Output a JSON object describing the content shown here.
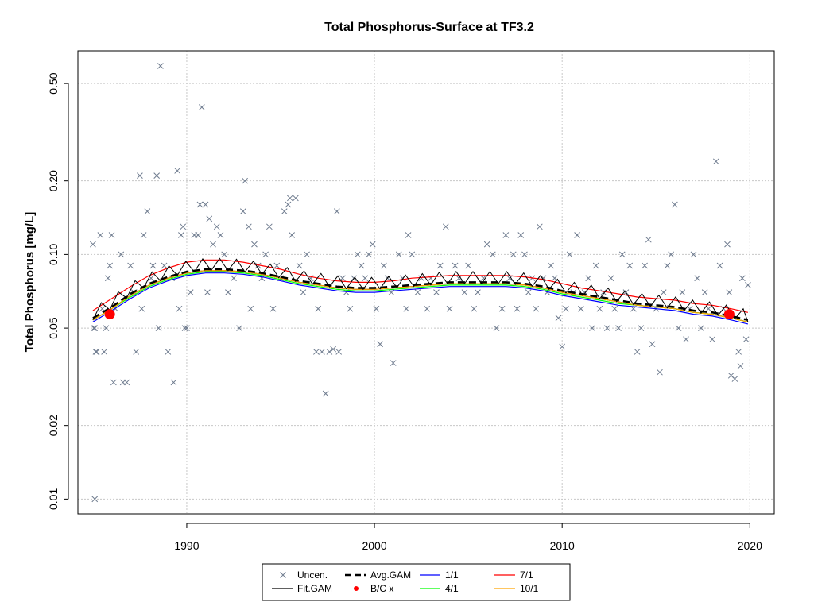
{
  "chart_data": {
    "type": "scatter",
    "title": "Total Phosphorus-Surface at TF3.2",
    "xlabel": "",
    "ylabel": "Total Phosphorus [mg/L]",
    "y_scale": "log",
    "xlim": [
      1984.2,
      2021.3
    ],
    "ylim": [
      0.0087,
      0.68
    ],
    "x_ticks": [
      1990,
      2000,
      2010,
      2020
    ],
    "y_ticks": [
      0.01,
      0.02,
      0.05,
      0.1,
      0.2,
      0.5
    ],
    "y_tick_labels": [
      "0.01",
      "0.02",
      "0.05",
      "0.10",
      "0.20",
      "0.50"
    ],
    "grid": true,
    "legend": {
      "position": "bottom",
      "entries": [
        {
          "label": "Uncen.",
          "style": "x-marker",
          "color": "#6f7c8f"
        },
        {
          "label": "Avg.GAM",
          "style": "dashed",
          "color": "#000000"
        },
        {
          "label": "1/1",
          "style": "line",
          "color": "#0000ff"
        },
        {
          "label": "7/1",
          "style": "line",
          "color": "#ff0000"
        },
        {
          "label": "Fit.GAM",
          "style": "line",
          "color": "#000000"
        },
        {
          "label": "B/C x",
          "style": "dot",
          "color": "#ff0000"
        },
        {
          "label": "4/1",
          "style": "line",
          "color": "#00ff00"
        },
        {
          "label": "10/1",
          "style": "line",
          "color": "#ffa500"
        }
      ]
    },
    "points_uncensored": [
      [
        1985.0,
        0.11
      ],
      [
        1985.05,
        0.05
      ],
      [
        1985.1,
        0.05
      ],
      [
        1985.15,
        0.04
      ],
      [
        1985.2,
        0.04
      ],
      [
        1985.1,
        0.01
      ],
      [
        1985.4,
        0.12
      ],
      [
        1985.5,
        0.06
      ],
      [
        1985.6,
        0.04
      ],
      [
        1985.7,
        0.05
      ],
      [
        1985.8,
        0.08
      ],
      [
        1985.9,
        0.09
      ],
      [
        1986.0,
        0.12
      ],
      [
        1986.1,
        0.03
      ],
      [
        1986.2,
        0.06
      ],
      [
        1986.5,
        0.1
      ],
      [
        1986.6,
        0.03
      ],
      [
        1986.8,
        0.03
      ],
      [
        1987.0,
        0.09
      ],
      [
        1987.2,
        0.07
      ],
      [
        1987.3,
        0.04
      ],
      [
        1987.5,
        0.21
      ],
      [
        1987.6,
        0.06
      ],
      [
        1987.7,
        0.12
      ],
      [
        1987.9,
        0.15
      ],
      [
        1988.1,
        0.08
      ],
      [
        1988.2,
        0.09
      ],
      [
        1988.4,
        0.21
      ],
      [
        1988.5,
        0.05
      ],
      [
        1988.6,
        0.59
      ],
      [
        1988.8,
        0.09
      ],
      [
        1989.0,
        0.04
      ],
      [
        1989.2,
        0.08
      ],
      [
        1989.3,
        0.03
      ],
      [
        1989.5,
        0.22
      ],
      [
        1989.6,
        0.06
      ],
      [
        1989.7,
        0.12
      ],
      [
        1989.8,
        0.13
      ],
      [
        1989.9,
        0.05
      ],
      [
        1990.0,
        0.05
      ],
      [
        1990.2,
        0.07
      ],
      [
        1990.4,
        0.12
      ],
      [
        1990.6,
        0.12
      ],
      [
        1990.7,
        0.16
      ],
      [
        1990.8,
        0.4
      ],
      [
        1991.0,
        0.16
      ],
      [
        1991.1,
        0.07
      ],
      [
        1991.2,
        0.14
      ],
      [
        1991.4,
        0.11
      ],
      [
        1991.6,
        0.13
      ],
      [
        1991.8,
        0.12
      ],
      [
        1992.0,
        0.1
      ],
      [
        1992.2,
        0.07
      ],
      [
        1992.5,
        0.08
      ],
      [
        1992.8,
        0.05
      ],
      [
        1993.0,
        0.15
      ],
      [
        1993.1,
        0.2
      ],
      [
        1993.3,
        0.13
      ],
      [
        1993.4,
        0.06
      ],
      [
        1993.6,
        0.11
      ],
      [
        1993.8,
        0.09
      ],
      [
        1994.0,
        0.08
      ],
      [
        1994.2,
        0.1
      ],
      [
        1994.4,
        0.13
      ],
      [
        1994.6,
        0.06
      ],
      [
        1994.8,
        0.09
      ],
      [
        1995.0,
        0.08
      ],
      [
        1995.2,
        0.15
      ],
      [
        1995.4,
        0.16
      ],
      [
        1995.5,
        0.17
      ],
      [
        1995.6,
        0.12
      ],
      [
        1995.8,
        0.17
      ],
      [
        1996.0,
        0.09
      ],
      [
        1996.2,
        0.07
      ],
      [
        1996.4,
        0.1
      ],
      [
        1996.6,
        0.08
      ],
      [
        1996.9,
        0.04
      ],
      [
        1997.0,
        0.06
      ],
      [
        1997.2,
        0.04
      ],
      [
        1997.4,
        0.027
      ],
      [
        1997.6,
        0.04
      ],
      [
        1997.8,
        0.041
      ],
      [
        1998.0,
        0.15
      ],
      [
        1998.1,
        0.04
      ],
      [
        1998.3,
        0.08
      ],
      [
        1998.5,
        0.07
      ],
      [
        1998.7,
        0.06
      ],
      [
        1998.9,
        0.08
      ],
      [
        1999.1,
        0.1
      ],
      [
        1999.3,
        0.09
      ],
      [
        1999.5,
        0.08
      ],
      [
        1999.7,
        0.1
      ],
      [
        1999.9,
        0.11
      ],
      [
        2000.1,
        0.06
      ],
      [
        2000.3,
        0.043
      ],
      [
        2000.5,
        0.09
      ],
      [
        2000.7,
        0.08
      ],
      [
        2000.9,
        0.07
      ],
      [
        2001.0,
        0.036
      ],
      [
        2001.3,
        0.1
      ],
      [
        2001.5,
        0.08
      ],
      [
        2001.7,
        0.06
      ],
      [
        2001.8,
        0.12
      ],
      [
        2002.0,
        0.1
      ],
      [
        2002.3,
        0.07
      ],
      [
        2002.5,
        0.08
      ],
      [
        2002.8,
        0.06
      ],
      [
        2003.0,
        0.08
      ],
      [
        2003.3,
        0.07
      ],
      [
        2003.5,
        0.09
      ],
      [
        2003.8,
        0.13
      ],
      [
        2004.0,
        0.06
      ],
      [
        2004.3,
        0.09
      ],
      [
        2004.5,
        0.08
      ],
      [
        2004.8,
        0.07
      ],
      [
        2005.0,
        0.09
      ],
      [
        2005.3,
        0.06
      ],
      [
        2005.5,
        0.07
      ],
      [
        2005.8,
        0.08
      ],
      [
        2006.0,
        0.11
      ],
      [
        2006.3,
        0.1
      ],
      [
        2006.5,
        0.05
      ],
      [
        2006.8,
        0.06
      ],
      [
        2007.0,
        0.12
      ],
      [
        2007.2,
        0.08
      ],
      [
        2007.4,
        0.1
      ],
      [
        2007.6,
        0.06
      ],
      [
        2007.8,
        0.12
      ],
      [
        2008.0,
        0.1
      ],
      [
        2008.2,
        0.07
      ],
      [
        2008.4,
        0.08
      ],
      [
        2008.6,
        0.06
      ],
      [
        2008.8,
        0.13
      ],
      [
        2009.0,
        0.08
      ],
      [
        2009.2,
        0.07
      ],
      [
        2009.4,
        0.09
      ],
      [
        2009.6,
        0.08
      ],
      [
        2009.8,
        0.055
      ],
      [
        2010.0,
        0.042
      ],
      [
        2010.2,
        0.06
      ],
      [
        2010.4,
        0.1
      ],
      [
        2010.6,
        0.07
      ],
      [
        2010.8,
        0.12
      ],
      [
        2011.0,
        0.06
      ],
      [
        2011.2,
        0.07
      ],
      [
        2011.4,
        0.08
      ],
      [
        2011.6,
        0.05
      ],
      [
        2011.8,
        0.09
      ],
      [
        2012.0,
        0.06
      ],
      [
        2012.2,
        0.07
      ],
      [
        2012.4,
        0.05
      ],
      [
        2012.6,
        0.08
      ],
      [
        2012.8,
        0.06
      ],
      [
        2013.0,
        0.05
      ],
      [
        2013.2,
        0.1
      ],
      [
        2013.4,
        0.07
      ],
      [
        2013.6,
        0.09
      ],
      [
        2013.8,
        0.06
      ],
      [
        2014.0,
        0.04
      ],
      [
        2014.2,
        0.05
      ],
      [
        2014.4,
        0.09
      ],
      [
        2014.6,
        0.115
      ],
      [
        2014.8,
        0.043
      ],
      [
        2015.0,
        0.06
      ],
      [
        2015.2,
        0.033
      ],
      [
        2015.4,
        0.07
      ],
      [
        2015.6,
        0.09
      ],
      [
        2015.8,
        0.1
      ],
      [
        2016.0,
        0.16
      ],
      [
        2016.2,
        0.05
      ],
      [
        2016.4,
        0.07
      ],
      [
        2016.6,
        0.045
      ],
      [
        2016.8,
        0.06
      ],
      [
        2017.0,
        0.1
      ],
      [
        2017.2,
        0.08
      ],
      [
        2017.4,
        0.05
      ],
      [
        2017.6,
        0.07
      ],
      [
        2017.8,
        0.06
      ],
      [
        2018.0,
        0.045
      ],
      [
        2018.2,
        0.24
      ],
      [
        2018.4,
        0.09
      ],
      [
        2018.6,
        0.06
      ],
      [
        2018.8,
        0.11
      ],
      [
        2019.0,
        0.032
      ],
      [
        2019.2,
        0.031
      ],
      [
        2019.4,
        0.04
      ],
      [
        2019.6,
        0.08
      ],
      [
        2019.8,
        0.045
      ],
      [
        2019.9,
        0.075
      ],
      [
        2019.5,
        0.035
      ],
      [
        2018.9,
        0.07
      ]
    ],
    "bc_points": [
      [
        1985.9,
        0.057
      ],
      [
        2018.9,
        0.057
      ]
    ],
    "series": [
      {
        "name": "Fit.GAM",
        "color": "#000000",
        "x": [
          1985.0,
          1986,
          1987,
          1988,
          1989,
          1990,
          1991,
          1992,
          1993,
          1994,
          1995,
          1996,
          1997,
          1998,
          1999,
          2000,
          2001,
          2002,
          2003,
          2004,
          2005,
          2006,
          2007,
          2008,
          2009,
          2010,
          2011,
          2012,
          2013,
          2014,
          2015,
          2016,
          2017,
          2018,
          2019,
          2019.9
        ],
        "values": [
          0.054,
          0.06,
          0.068,
          0.075,
          0.08,
          0.084,
          0.086,
          0.086,
          0.085,
          0.083,
          0.08,
          0.077,
          0.075,
          0.073,
          0.072,
          0.072,
          0.073,
          0.074,
          0.075,
          0.076,
          0.076,
          0.076,
          0.076,
          0.075,
          0.073,
          0.07,
          0.068,
          0.066,
          0.064,
          0.062,
          0.061,
          0.06,
          0.058,
          0.057,
          0.055,
          0.053
        ]
      },
      {
        "name": "7/1",
        "color": "#ff0000",
        "x": [
          1985.0,
          1986,
          1987,
          1988,
          1989,
          1990,
          1991,
          1992,
          1993,
          1994,
          1995,
          1996,
          1997,
          1998,
          1999,
          2000,
          2001,
          2002,
          2003,
          2004,
          2005,
          2006,
          2007,
          2008,
          2009,
          2010,
          2011,
          2012,
          2013,
          2014,
          2015,
          2016,
          2017,
          2018,
          2019,
          2019.9
        ],
        "values": [
          0.059,
          0.066,
          0.074,
          0.082,
          0.088,
          0.093,
          0.095,
          0.095,
          0.093,
          0.09,
          0.087,
          0.083,
          0.08,
          0.078,
          0.077,
          0.077,
          0.078,
          0.08,
          0.081,
          0.082,
          0.082,
          0.082,
          0.082,
          0.081,
          0.079,
          0.076,
          0.073,
          0.071,
          0.069,
          0.067,
          0.066,
          0.065,
          0.063,
          0.062,
          0.06,
          0.058
        ]
      },
      {
        "name": "1/1",
        "color": "#0000ff",
        "x": [
          1985.0,
          1986,
          1987,
          1988,
          1989,
          1990,
          1991,
          1992,
          1993,
          1994,
          1995,
          1996,
          1997,
          1998,
          1999,
          2000,
          2001,
          2002,
          2003,
          2004,
          2005,
          2006,
          2007,
          2008,
          2009,
          2010,
          2011,
          2012,
          2013,
          2014,
          2015,
          2016,
          2017,
          2018,
          2019,
          2019.9
        ],
        "values": [
          0.053,
          0.059,
          0.066,
          0.073,
          0.078,
          0.082,
          0.084,
          0.084,
          0.083,
          0.081,
          0.078,
          0.075,
          0.073,
          0.071,
          0.07,
          0.07,
          0.071,
          0.072,
          0.073,
          0.074,
          0.074,
          0.074,
          0.074,
          0.073,
          0.071,
          0.068,
          0.066,
          0.064,
          0.062,
          0.061,
          0.06,
          0.059,
          0.057,
          0.056,
          0.054,
          0.052
        ]
      },
      {
        "name": "4/1",
        "color": "#00ff00",
        "x": [
          1985.0,
          1986,
          1987,
          1988,
          1989,
          1990,
          1991,
          1992,
          1993,
          1994,
          1995,
          1996,
          1997,
          1998,
          1999,
          2000,
          2001,
          2002,
          2003,
          2004,
          2005,
          2006,
          2007,
          2008,
          2009,
          2010,
          2011,
          2012,
          2013,
          2014,
          2015,
          2016,
          2017,
          2018,
          2019,
          2019.9
        ],
        "values": [
          0.054,
          0.06,
          0.067,
          0.074,
          0.079,
          0.083,
          0.085,
          0.085,
          0.084,
          0.082,
          0.079,
          0.076,
          0.074,
          0.072,
          0.071,
          0.071,
          0.072,
          0.073,
          0.074,
          0.075,
          0.075,
          0.075,
          0.075,
          0.074,
          0.072,
          0.069,
          0.067,
          0.065,
          0.063,
          0.062,
          0.061,
          0.06,
          0.058,
          0.057,
          0.055,
          0.053
        ]
      },
      {
        "name": "10/1",
        "color": "#ffa500",
        "x": [
          1985.0,
          1986,
          1987,
          1988,
          1989,
          1990,
          1991,
          1992,
          1993,
          1994,
          1995,
          1996,
          1997,
          1998,
          1999,
          2000,
          2001,
          2002,
          2003,
          2004,
          2005,
          2006,
          2007,
          2008,
          2009,
          2010,
          2011,
          2012,
          2013,
          2014,
          2015,
          2016,
          2017,
          2018,
          2019,
          2019.9
        ],
        "values": [
          0.054,
          0.06,
          0.068,
          0.075,
          0.08,
          0.084,
          0.086,
          0.086,
          0.085,
          0.083,
          0.08,
          0.077,
          0.075,
          0.073,
          0.072,
          0.072,
          0.073,
          0.074,
          0.075,
          0.076,
          0.076,
          0.076,
          0.076,
          0.075,
          0.073,
          0.07,
          0.068,
          0.066,
          0.064,
          0.062,
          0.061,
          0.06,
          0.058,
          0.057,
          0.055,
          0.053
        ]
      },
      {
        "name": "Avg.GAM",
        "color": "#000000",
        "style": "dashed",
        "x": [
          1985.0,
          1986,
          1987,
          1988,
          1989,
          1990,
          1991,
          1992,
          1993,
          1994,
          1995,
          1996,
          1997,
          1998,
          1999,
          2000,
          2001,
          2002,
          2003,
          2004,
          2005,
          2006,
          2007,
          2008,
          2009,
          2010,
          2011,
          2012,
          2013,
          2014,
          2015,
          2016,
          2017,
          2018,
          2019,
          2019.9
        ],
        "values": [
          0.055,
          0.061,
          0.069,
          0.076,
          0.081,
          0.085,
          0.087,
          0.087,
          0.086,
          0.084,
          0.081,
          0.078,
          0.076,
          0.074,
          0.073,
          0.073,
          0.074,
          0.075,
          0.076,
          0.077,
          0.077,
          0.077,
          0.077,
          0.076,
          0.074,
          0.071,
          0.069,
          0.067,
          0.065,
          0.063,
          0.062,
          0.061,
          0.059,
          0.058,
          0.056,
          0.054
        ]
      }
    ]
  }
}
